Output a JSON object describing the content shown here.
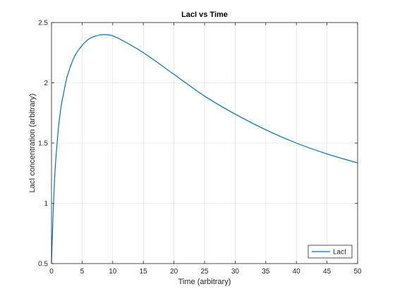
{
  "chart_data": {
    "type": "line",
    "title": "LacI vs Time",
    "xlabel": "Time (arbitrary)",
    "ylabel": "LacI concentration (arbitrary)",
    "xlim": [
      0,
      50
    ],
    "ylim": [
      0.5,
      2.5
    ],
    "xticks": [
      0,
      5,
      10,
      15,
      20,
      25,
      30,
      35,
      40,
      45,
      50
    ],
    "yticks": [
      0.5,
      1,
      1.5,
      2,
      2.5
    ],
    "xtick_labels": [
      "0",
      "5",
      "10",
      "15",
      "20",
      "25",
      "30",
      "35",
      "40",
      "45",
      "50"
    ],
    "ytick_labels": [
      "0.5",
      "1",
      "1.5",
      "2",
      "2.5"
    ],
    "grid": true,
    "legend_position": "bottom-right",
    "series": [
      {
        "name": "LacI",
        "color": "#0072BD",
        "x": [
          0,
          0.25,
          0.5,
          1,
          1.5,
          2,
          2.5,
          3,
          3.5,
          4,
          5,
          6,
          7,
          8,
          8.7,
          10,
          12,
          15,
          20,
          25,
          30,
          35,
          40,
          45,
          50
        ],
        "y": [
          0.5,
          0.9,
          1.2,
          1.55,
          1.78,
          1.92,
          2.04,
          2.12,
          2.19,
          2.24,
          2.31,
          2.36,
          2.385,
          2.398,
          2.4,
          2.39,
          2.34,
          2.25,
          2.07,
          1.89,
          1.74,
          1.61,
          1.5,
          1.41,
          1.335
        ]
      }
    ]
  }
}
